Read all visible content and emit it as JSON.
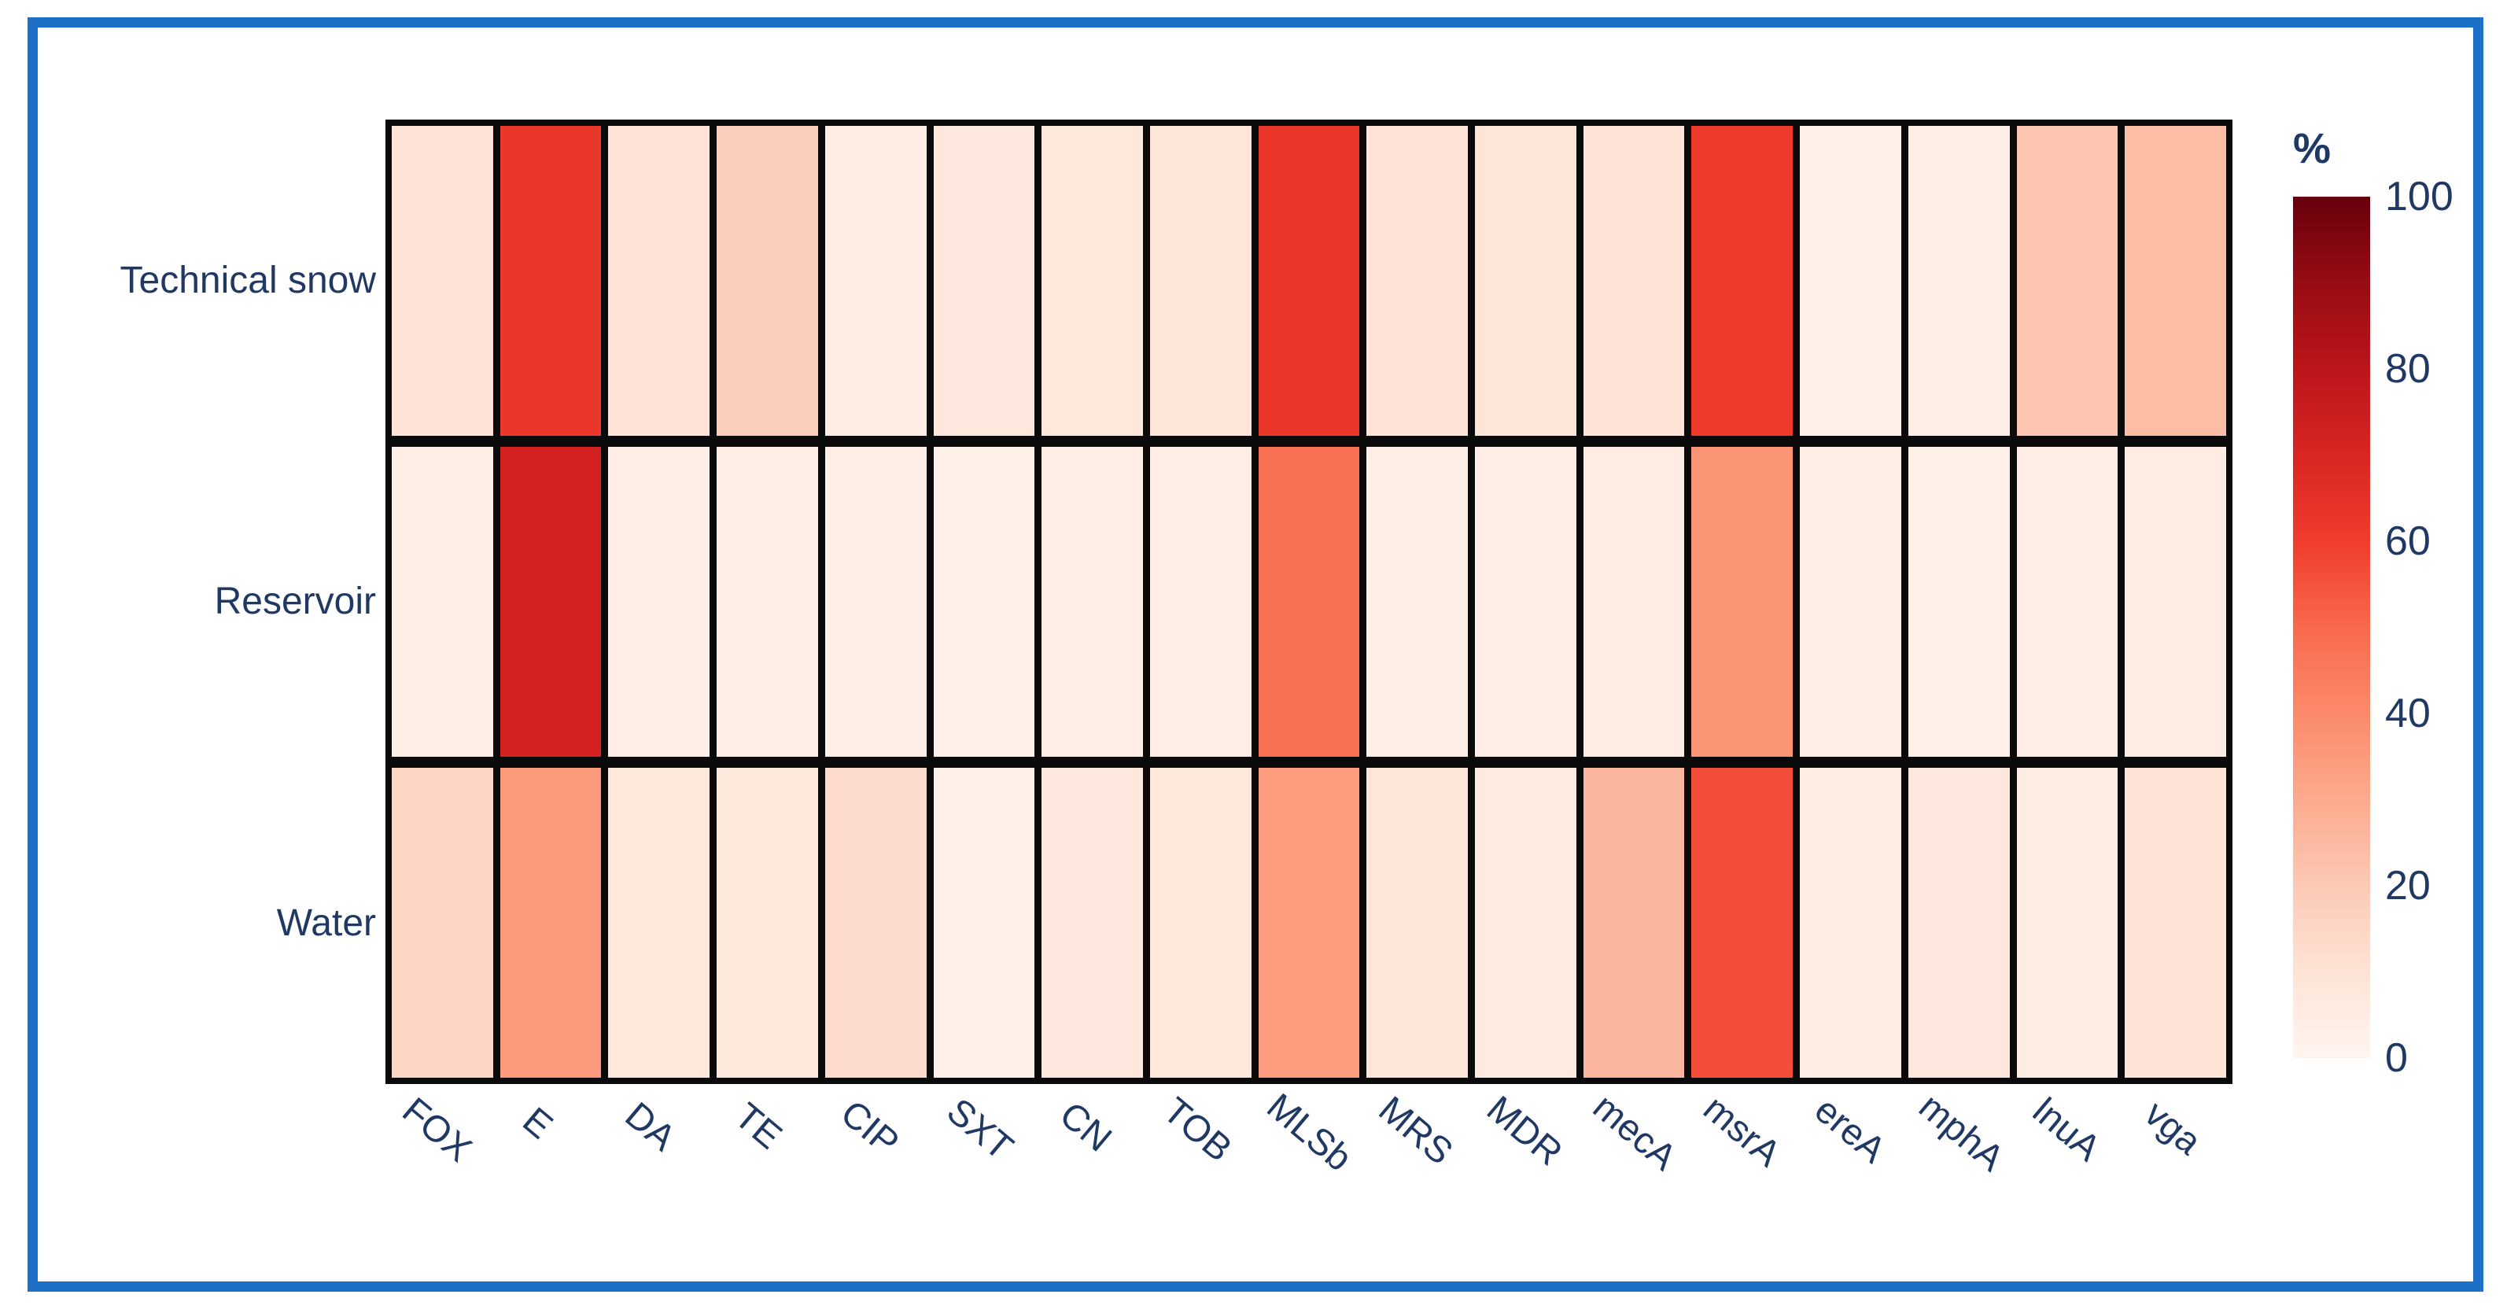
{
  "figure": {
    "frame_border_color": "#1c70c8",
    "background_color": "#ffffff",
    "grid_line_color": "#0a0a0a",
    "axis_text_color": "#1f3864"
  },
  "chart_data": {
    "type": "heatmap",
    "title": "",
    "rows": [
      "Technical snow",
      "Reservoir",
      "Water"
    ],
    "columns": [
      "FOX",
      "E",
      "DA",
      "TE",
      "CIP",
      "SXT",
      "CN",
      "TOB",
      "MLSb",
      "MRS",
      "MDR",
      "mecA",
      "msrA",
      "ereA",
      "mphA",
      "lnuA",
      "vga"
    ],
    "values_percent": [
      [
        10,
        62,
        10,
        18,
        5,
        7,
        8,
        9,
        62,
        10,
        9,
        10,
        61,
        3,
        4,
        21,
        24
      ],
      [
        4,
        72,
        4,
        4,
        4,
        3,
        4,
        4,
        48,
        4,
        4,
        5,
        37,
        4,
        3,
        4,
        5
      ],
      [
        15,
        35,
        8,
        8,
        13,
        3,
        7,
        8,
        34,
        9,
        6,
        26,
        56,
        5,
        7,
        5,
        10
      ]
    ],
    "colorbar": {
      "label": "%",
      "ticks": [
        "100",
        "80",
        "60",
        "40",
        "20",
        "0"
      ],
      "min": 0,
      "max": 100,
      "position": "right"
    },
    "colormap": {
      "name": "Reds",
      "stops": [
        {
          "value": 0,
          "color": "#fff5f0"
        },
        {
          "value": 10,
          "color": "#fee3d6"
        },
        {
          "value": 20,
          "color": "#fcc9b5"
        },
        {
          "value": 30,
          "color": "#fcaa8e"
        },
        {
          "value": 40,
          "color": "#fb8a6a"
        },
        {
          "value": 50,
          "color": "#f9694c"
        },
        {
          "value": 60,
          "color": "#ef3c2c"
        },
        {
          "value": 70,
          "color": "#d92523"
        },
        {
          "value": 80,
          "color": "#bb151a"
        },
        {
          "value": 90,
          "color": "#980c13"
        },
        {
          "value": 100,
          "color": "#67000d"
        }
      ]
    },
    "layout_hints": {
      "x_tick_rotation_deg": 40,
      "grid_on": true,
      "legend_position": "right-colorbar"
    }
  }
}
